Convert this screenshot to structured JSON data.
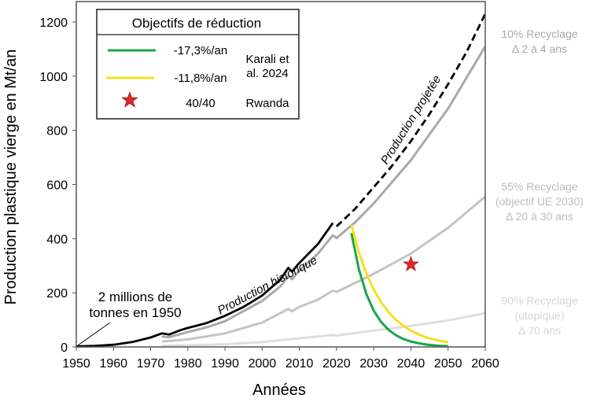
{
  "chart_data": {
    "type": "line",
    "xlabel": "Années",
    "ylabel": "Production plastique vierge en Mt/an",
    "xlim": [
      1950,
      2060
    ],
    "ylim": [
      0,
      1270
    ],
    "xticks": [
      1950,
      1960,
      1970,
      1980,
      1990,
      2000,
      2010,
      2020,
      2030,
      2040,
      2050,
      2060
    ],
    "yticks": [
      0,
      200,
      400,
      600,
      800,
      1000,
      1200
    ],
    "grid": false,
    "legend": {
      "title": "Objectifs de réduction",
      "position": "top-left",
      "rows": [
        {
          "label": "-17,3%/an",
          "color": "#1aa54a",
          "kind": "line"
        },
        {
          "label": "-11,8%/an",
          "color": "#f2e11f",
          "kind": "line"
        },
        {
          "label": "40/40",
          "color": "#e0262b",
          "kind": "star"
        }
      ],
      "sources": [
        "Karali et al. 2024",
        "Rwanda"
      ]
    },
    "series": [
      {
        "name": "Production historique",
        "color": "#000000",
        "dash": false,
        "x": [
          1950,
          1955,
          1960,
          1965,
          1970,
          1973,
          1975,
          1978,
          1980,
          1985,
          1990,
          1995,
          2000,
          2005,
          2007,
          2008,
          2010,
          2015,
          2019
        ],
        "y": [
          2,
          4,
          8,
          18,
          35,
          50,
          46,
          62,
          70,
          88,
          115,
          148,
          190,
          250,
          292,
          278,
          310,
          380,
          458
        ]
      },
      {
        "name": "Production projetée",
        "color": "#000000",
        "dash": true,
        "x": [
          2020,
          2025,
          2030,
          2035,
          2040,
          2045,
          2050,
          2055,
          2060
        ],
        "y": [
          445,
          510,
          590,
          670,
          760,
          860,
          970,
          1090,
          1230
        ]
      },
      {
        "name": "10% Recyclage",
        "color": "#a9a9a9",
        "x": [
          1973,
          1975,
          1980,
          1985,
          1990,
          2000,
          2005,
          2007,
          2008,
          2010,
          2015,
          2019,
          2020,
          2025,
          2030,
          2040,
          2050,
          2060
        ],
        "y": [
          38,
          36,
          55,
          72,
          95,
          170,
          225,
          262,
          250,
          282,
          345,
          412,
          402,
          460,
          530,
          690,
          880,
          1110
        ]
      },
      {
        "name": "55% Recyclage",
        "color": "#c4c4c4",
        "x": [
          1973,
          1980,
          1990,
          2000,
          2007,
          2008,
          2010,
          2015,
          2019,
          2020,
          2030,
          2040,
          2050,
          2060
        ],
        "y": [
          20,
          28,
          50,
          90,
          140,
          132,
          148,
          175,
          208,
          203,
          270,
          345,
          440,
          555
        ]
      },
      {
        "name": "90% Recyclage",
        "color": "#dedede",
        "x": [
          1973,
          1980,
          1990,
          2000,
          2010,
          2019,
          2020,
          2030,
          2040,
          2050,
          2060
        ],
        "y": [
          4,
          6,
          10,
          18,
          32,
          44,
          42,
          60,
          78,
          98,
          125
        ]
      },
      {
        "name": "-17,3%/an",
        "color": "#1aa54a",
        "x": [
          2024,
          2026,
          2028,
          2030,
          2032,
          2034,
          2036,
          2038,
          2040,
          2042,
          2044,
          2046,
          2048,
          2050
        ],
        "y": [
          420,
          287,
          196,
          134,
          92,
          63,
          43,
          29,
          20,
          14,
          9,
          6,
          4,
          3
        ]
      },
      {
        "name": "-11,8%/an",
        "color": "#f2e11f",
        "x": [
          2024,
          2026,
          2028,
          2030,
          2032,
          2034,
          2036,
          2038,
          2040,
          2042,
          2044,
          2046,
          2048,
          2050
        ],
        "y": [
          450,
          350,
          272,
          212,
          165,
          128,
          100,
          78,
          60,
          47,
          36,
          28,
          22,
          17
        ]
      }
    ],
    "points": [
      {
        "name": "40/40",
        "x": 2040,
        "y": 305,
        "color": "#e0262b"
      }
    ],
    "annotations": {
      "hist": "Production historique",
      "proj": "Production projetée",
      "start1": "2 millions de",
      "start2": "tonnes en 1950",
      "r10": [
        "10% Recyclage",
        "Δ 2 à 4 ans"
      ],
      "r55": [
        "55% Recyclage",
        "(objectif UE 2030)",
        "Δ 20 à 30 ans"
      ],
      "r90": [
        "90% Recyclage",
        "(utopique)",
        "Δ 70 ans"
      ]
    }
  }
}
